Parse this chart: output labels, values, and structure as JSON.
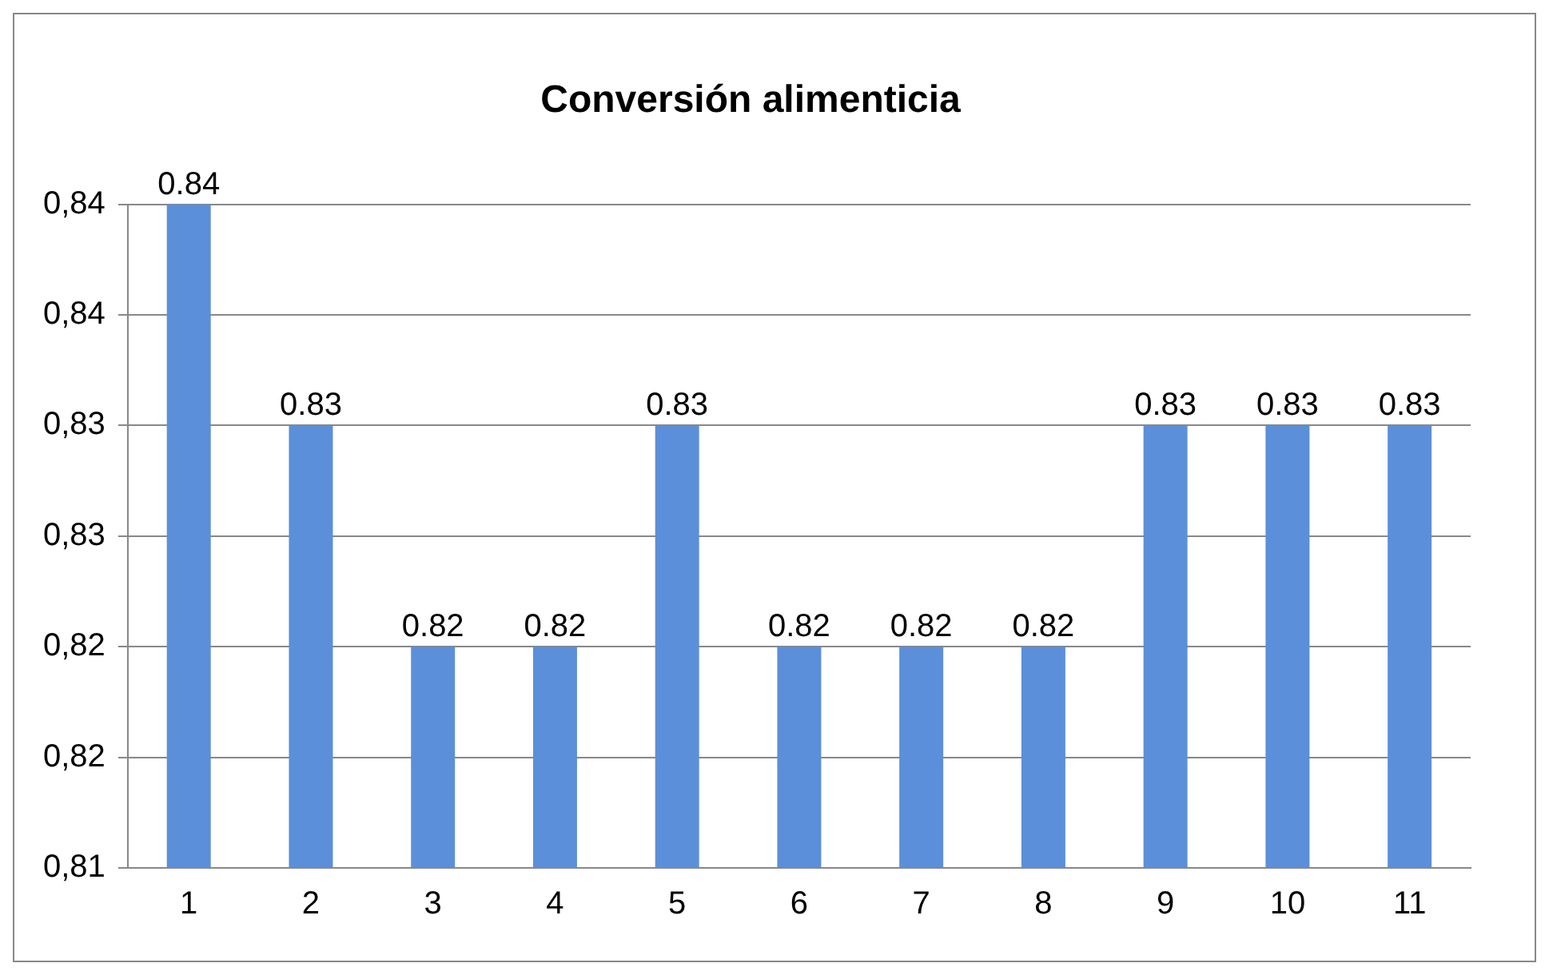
{
  "chart_data": {
    "type": "bar",
    "title": "Conversión alimenticia",
    "categories": [
      "1",
      "2",
      "3",
      "4",
      "5",
      "6",
      "7",
      "8",
      "9",
      "10",
      "11"
    ],
    "values": [
      0.84,
      0.83,
      0.82,
      0.82,
      0.83,
      0.82,
      0.82,
      0.82,
      0.83,
      0.83,
      0.83
    ],
    "color": "#5b8fd9",
    "ylim": [
      0.81,
      0.84
    ],
    "yticks": [
      {
        "value": 0.81,
        "label": "0,81"
      },
      {
        "value": 0.815,
        "label": "0,82"
      },
      {
        "value": 0.82,
        "label": "0,82"
      },
      {
        "value": 0.825,
        "label": "0,83"
      },
      {
        "value": 0.83,
        "label": "0,83"
      },
      {
        "value": 0.835,
        "label": "0,84"
      },
      {
        "value": 0.84,
        "label": "0,84"
      }
    ],
    "grid": "y",
    "data_labels": true,
    "legend": false
  }
}
